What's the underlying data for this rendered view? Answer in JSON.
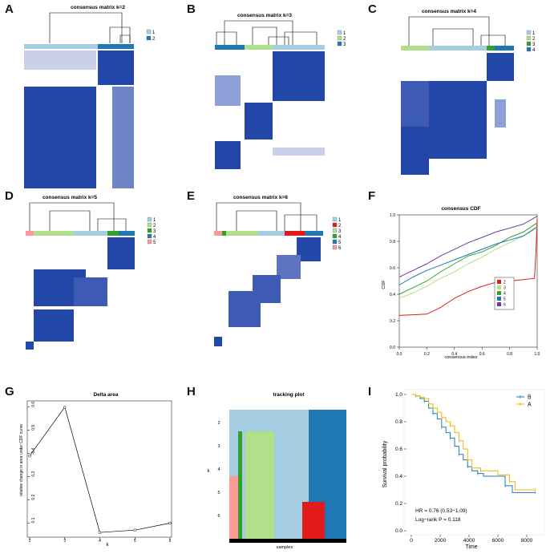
{
  "panels": {
    "A": {
      "letter": "A",
      "title": "consensus matrix k=2",
      "legend": [
        "1",
        "2"
      ]
    },
    "B": {
      "letter": "B",
      "title": "consensus matrix k=3",
      "legend": [
        "1",
        "2",
        "3"
      ]
    },
    "C": {
      "letter": "C",
      "title": "consensus matrix k=4",
      "legend": [
        "1",
        "2",
        "3",
        "4"
      ]
    },
    "D": {
      "letter": "D",
      "title": "consensus matrix k=5",
      "legend": [
        "1",
        "2",
        "3",
        "4",
        "5"
      ]
    },
    "E": {
      "letter": "E",
      "title": "consensus matrix k=6",
      "legend": [
        "1",
        "2",
        "3",
        "4",
        "5",
        "6"
      ]
    },
    "F": {
      "letter": "F"
    },
    "G": {
      "letter": "G"
    },
    "H": {
      "letter": "H"
    },
    "I": {
      "letter": "I"
    }
  },
  "colors": {
    "matrix_blue": "#2347a8",
    "cluster": [
      "#a6cee3",
      "#1f78b4",
      "#b2df8a",
      "#33a02c",
      "#fb9a99",
      "#e31a1c"
    ],
    "legend_k2": [
      "#a6cee3",
      "#1f78b4"
    ],
    "legend_k3": [
      "#a6cee3",
      "#b2df8a",
      "#1f78b4"
    ],
    "legend_k4": [
      "#a6cee3",
      "#b2df8a",
      "#33a02c",
      "#1f78b4"
    ],
    "legend_k5": [
      "#a6cee3",
      "#b2df8a",
      "#33a02c",
      "#1f78b4",
      "#fb9a99"
    ],
    "legend_k6": [
      "#a6cee3",
      "#e31a1c",
      "#b2df8a",
      "#33a02c",
      "#1f78b4",
      "#fb9a99"
    ],
    "cdf": {
      "2": "#e31a1c",
      "3": "#b2df8a",
      "4": "#33a02c",
      "5": "#1f78b4",
      "6": "#6a3d9a"
    },
    "surv_B": "#1f78b4",
    "surv_A": "#f0b400"
  },
  "chart_data": [
    {
      "panel": "F",
      "type": "line",
      "title": "consensus CDF",
      "xlabel": "consensus index",
      "ylabel": "CDF",
      "xlim": [
        0,
        1
      ],
      "ylim": [
        0,
        1
      ],
      "xticks": [
        "0.0",
        "0.2",
        "0.4",
        "0.6",
        "0.8",
        "1.0"
      ],
      "yticks": [
        "0.0",
        "0.2",
        "0.4",
        "0.6",
        "0.8",
        "1.0"
      ],
      "legend_position": "bottom-right",
      "series": [
        {
          "name": "2",
          "points": [
            [
              0,
              0.24
            ],
            [
              0.1,
              0.245
            ],
            [
              0.2,
              0.25
            ],
            [
              0.3,
              0.3
            ],
            [
              0.4,
              0.37
            ],
            [
              0.5,
              0.42
            ],
            [
              0.6,
              0.46
            ],
            [
              0.7,
              0.49
            ],
            [
              0.8,
              0.5
            ],
            [
              0.9,
              0.51
            ],
            [
              0.98,
              0.52
            ],
            [
              0.99,
              0.7
            ],
            [
              1.0,
              0.97
            ]
          ]
        },
        {
          "name": "3",
          "points": [
            [
              0,
              0.37
            ],
            [
              0.1,
              0.41
            ],
            [
              0.2,
              0.46
            ],
            [
              0.3,
              0.52
            ],
            [
              0.4,
              0.57
            ],
            [
              0.5,
              0.63
            ],
            [
              0.6,
              0.68
            ],
            [
              0.7,
              0.74
            ],
            [
              0.8,
              0.79
            ],
            [
              0.9,
              0.84
            ],
            [
              1.0,
              0.9
            ]
          ]
        },
        {
          "name": "4",
          "points": [
            [
              0,
              0.4
            ],
            [
              0.1,
              0.45
            ],
            [
              0.2,
              0.5
            ],
            [
              0.3,
              0.57
            ],
            [
              0.4,
              0.63
            ],
            [
              0.5,
              0.69
            ],
            [
              0.6,
              0.72
            ],
            [
              0.7,
              0.77
            ],
            [
              0.8,
              0.83
            ],
            [
              0.9,
              0.87
            ],
            [
              1.0,
              0.94
            ]
          ]
        },
        {
          "name": "5",
          "points": [
            [
              0,
              0.47
            ],
            [
              0.1,
              0.53
            ],
            [
              0.2,
              0.58
            ],
            [
              0.3,
              0.62
            ],
            [
              0.4,
              0.66
            ],
            [
              0.5,
              0.7
            ],
            [
              0.6,
              0.74
            ],
            [
              0.7,
              0.78
            ],
            [
              0.8,
              0.81
            ],
            [
              0.9,
              0.84
            ],
            [
              1.0,
              0.91
            ]
          ]
        },
        {
          "name": "6",
          "points": [
            [
              0,
              0.53
            ],
            [
              0.1,
              0.58
            ],
            [
              0.2,
              0.63
            ],
            [
              0.3,
              0.69
            ],
            [
              0.4,
              0.74
            ],
            [
              0.5,
              0.79
            ],
            [
              0.6,
              0.83
            ],
            [
              0.7,
              0.87
            ],
            [
              0.8,
              0.9
            ],
            [
              0.9,
              0.93
            ],
            [
              1.0,
              0.99
            ]
          ]
        }
      ]
    },
    {
      "panel": "G",
      "type": "line",
      "title": "Delta area",
      "xlabel": "k",
      "ylabel": "relative change in area under CDF curve",
      "xlim": [
        2,
        6
      ],
      "ylim": [
        0.05,
        0.62
      ],
      "x": [
        2,
        3,
        4,
        5,
        6
      ],
      "y": [
        0.39,
        0.6,
        0.06,
        0.07,
        0.1
      ],
      "xticks": [
        "2",
        "3",
        "4",
        "5",
        "6"
      ],
      "yticks": [
        "0.1",
        "0.2",
        "0.3",
        "0.4",
        "0.5",
        "0.6"
      ]
    },
    {
      "panel": "H",
      "type": "heatmap",
      "title": "tracking plot",
      "xlabel": "samples",
      "ylabel": "k",
      "rows": [
        "2",
        "3",
        "4",
        "5",
        "6"
      ]
    },
    {
      "panel": "I",
      "type": "line",
      "xlabel": "Time",
      "ylabel": "Survival probability",
      "xlim": [
        0,
        9000
      ],
      "ylim": [
        0,
        1
      ],
      "xticks": [
        "0",
        "2000",
        "4000",
        "6000",
        "8000"
      ],
      "yticks": [
        "0.0",
        "0.2",
        "0.4",
        "0.6",
        "0.8",
        "1.0"
      ],
      "legend_position": "top-right",
      "annotations": [
        "HR = 0.76 (0.53−1.09)",
        "Log−rank P = 0.118"
      ],
      "series": [
        {
          "name": "B",
          "points": [
            [
              0,
              1.0
            ],
            [
              300,
              0.99
            ],
            [
              600,
              0.97
            ],
            [
              900,
              0.95
            ],
            [
              1200,
              0.9
            ],
            [
              1500,
              0.86
            ],
            [
              1800,
              0.82
            ],
            [
              2100,
              0.76
            ],
            [
              2400,
              0.72
            ],
            [
              2700,
              0.68
            ],
            [
              3000,
              0.62
            ],
            [
              3300,
              0.56
            ],
            [
              3600,
              0.52
            ],
            [
              3900,
              0.47
            ],
            [
              4200,
              0.44
            ],
            [
              4600,
              0.42
            ],
            [
              5000,
              0.4
            ],
            [
              6500,
              0.33
            ],
            [
              7000,
              0.28
            ],
            [
              8600,
              0.28
            ]
          ]
        },
        {
          "name": "A",
          "points": [
            [
              0,
              1.0
            ],
            [
              300,
              0.99
            ],
            [
              600,
              0.98
            ],
            [
              900,
              0.97
            ],
            [
              1200,
              0.93
            ],
            [
              1500,
              0.9
            ],
            [
              1800,
              0.87
            ],
            [
              2100,
              0.83
            ],
            [
              2400,
              0.8
            ],
            [
              2700,
              0.77
            ],
            [
              3000,
              0.72
            ],
            [
              3300,
              0.66
            ],
            [
              3600,
              0.6
            ],
            [
              3900,
              0.52
            ],
            [
              4200,
              0.46
            ],
            [
              4800,
              0.44
            ],
            [
              6000,
              0.41
            ],
            [
              6800,
              0.36
            ],
            [
              7200,
              0.3
            ],
            [
              8600,
              0.3
            ]
          ]
        }
      ]
    }
  ]
}
